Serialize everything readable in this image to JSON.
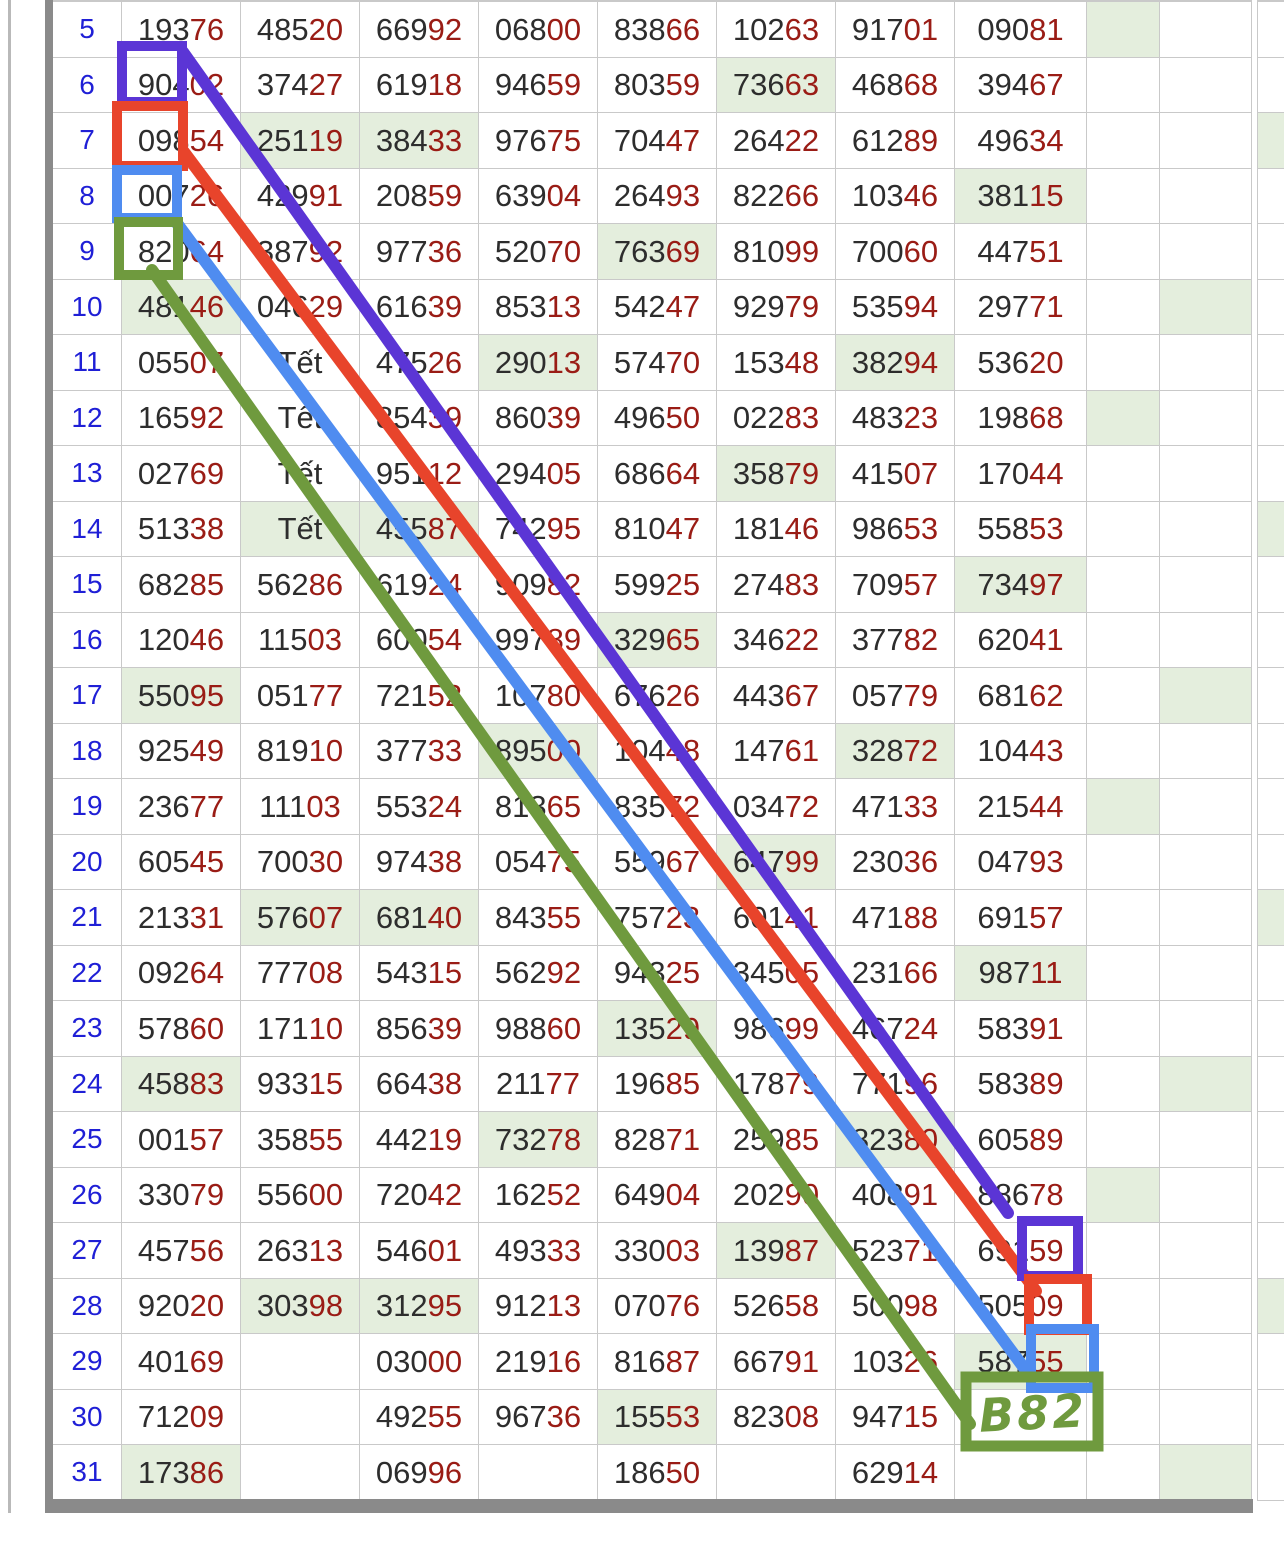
{
  "table": {
    "columns": 8,
    "tet_text": "Tết",
    "rows": [
      {
        "label": "5",
        "cells": [
          "19376",
          "48520",
          "66992",
          "06800",
          "83866",
          "10263",
          "91701",
          "09081"
        ]
      },
      {
        "label": "6",
        "cells": [
          "90402",
          "37427",
          "61918",
          "94659",
          "80359",
          "73663",
          "46868",
          "39467"
        ]
      },
      {
        "label": "7",
        "cells": [
          "09854",
          "25119",
          "38433",
          "97675",
          "70447",
          "26422",
          "61289",
          "49634"
        ]
      },
      {
        "label": "8",
        "cells": [
          "00726",
          "42991",
          "20859",
          "63904",
          "26493",
          "82266",
          "10346",
          "38115"
        ]
      },
      {
        "label": "9",
        "cells": [
          "82064",
          "38792",
          "97736",
          "52070",
          "76369",
          "81099",
          "70060",
          "44751"
        ]
      },
      {
        "label": "10",
        "cells": [
          "48146",
          "04629",
          "61639",
          "85313",
          "54247",
          "92979",
          "53594",
          "29771"
        ]
      },
      {
        "label": "11",
        "cells": [
          "05507",
          "Tết",
          "47526",
          "29013",
          "57470",
          "15348",
          "38294",
          "53620"
        ]
      },
      {
        "label": "12",
        "cells": [
          "16592",
          "Tết",
          "85439",
          "86039",
          "49650",
          "02283",
          "48323",
          "19868"
        ]
      },
      {
        "label": "13",
        "cells": [
          "02769",
          "Tết",
          "95112",
          "29405",
          "68664",
          "35879",
          "41507",
          "17044"
        ]
      },
      {
        "label": "14",
        "cells": [
          "51338",
          "Tết",
          "45587",
          "74295",
          "81047",
          "18146",
          "98653",
          "55853"
        ]
      },
      {
        "label": "15",
        "cells": [
          "68285",
          "56286",
          "61924",
          "90982",
          "59925",
          "27483",
          "70957",
          "73497"
        ]
      },
      {
        "label": "16",
        "cells": [
          "12046",
          "11503",
          "60054",
          "99789",
          "32965",
          "34622",
          "37782",
          "62041"
        ]
      },
      {
        "label": "17",
        "cells": [
          "55095",
          "05177",
          "72152",
          "10780",
          "67626",
          "44367",
          "05779",
          "68162"
        ]
      },
      {
        "label": "18",
        "cells": [
          "92549",
          "81910",
          "37733",
          "89500",
          "10448",
          "14761",
          "32872",
          "10443"
        ]
      },
      {
        "label": "19",
        "cells": [
          "23677",
          "11103",
          "55324",
          "81365",
          "83572",
          "03472",
          "47133",
          "21544"
        ]
      },
      {
        "label": "20",
        "cells": [
          "60545",
          "70030",
          "97438",
          "05475",
          "55967",
          "64799",
          "23036",
          "04793"
        ]
      },
      {
        "label": "21",
        "cells": [
          "21331",
          "57607",
          "68140",
          "84355",
          "75723",
          "60141",
          "47188",
          "69157"
        ]
      },
      {
        "label": "22",
        "cells": [
          "09264",
          "77708",
          "54315",
          "56292",
          "94325",
          "34505",
          "23166",
          "98711"
        ]
      },
      {
        "label": "23",
        "cells": [
          "57860",
          "17110",
          "85639",
          "98860",
          "13529",
          "98699",
          "46724",
          "58391"
        ]
      },
      {
        "label": "24",
        "cells": [
          "45883",
          "93315",
          "66438",
          "21177",
          "19685",
          "17879",
          "77196",
          "58389"
        ]
      },
      {
        "label": "25",
        "cells": [
          "00157",
          "35855",
          "44219",
          "73278",
          "82871",
          "25985",
          "82380",
          "60589"
        ]
      },
      {
        "label": "26",
        "cells": [
          "33079",
          "55600",
          "72042",
          "16252",
          "64904",
          "20290",
          "40891",
          "88678"
        ]
      },
      {
        "label": "27",
        "cells": [
          "45756",
          "26313",
          "54601",
          "49333",
          "33003",
          "13987",
          "52371",
          "69159"
        ]
      },
      {
        "label": "28",
        "cells": [
          "92020",
          "30398",
          "31295",
          "91213",
          "07076",
          "52658",
          "50098",
          "50509"
        ]
      },
      {
        "label": "29",
        "cells": [
          "40169",
          "",
          "03000",
          "21916",
          "81687",
          "66791",
          "10326",
          "58755"
        ]
      },
      {
        "label": "30",
        "cells": [
          "71209",
          "",
          "49255",
          "96736",
          "15553",
          "82308",
          "94715",
          ""
        ]
      },
      {
        "label": "31",
        "cells": [
          "17386",
          "",
          "06996",
          "",
          "18650",
          "",
          "62914",
          ""
        ]
      }
    ],
    "highlights": [
      "5-9",
      "6-6",
      "7-2",
      "7-3",
      "7-11",
      "8-8",
      "9-5",
      "10-1",
      "10-10",
      "11-4",
      "11-7",
      "12-9",
      "13-6",
      "14-2",
      "14-3",
      "14-11",
      "15-8",
      "16-5",
      "17-1",
      "17-10",
      "18-4",
      "18-7",
      "19-9",
      "20-6",
      "21-2",
      "21-3",
      "21-11",
      "22-8",
      "23-5",
      "24-1",
      "24-10",
      "25-4",
      "25-7",
      "26-9",
      "27-6",
      "28-2",
      "28-3",
      "28-11",
      "29-8",
      "30-5",
      "31-1",
      "31-10"
    ]
  },
  "annotations": {
    "handwriting_label": "B82",
    "colors": {
      "purple": "#5b35d5",
      "red": "#e8442b",
      "blue": "#4f8cf0",
      "green": "#6f9a3e"
    }
  },
  "colors": {
    "highlight_bg": "#e4eedd",
    "row_label_blue": "#1f1fd6",
    "digit_black": "#2d2d2d",
    "digit_red": "#9a1c15",
    "grid_line": "#c9c9c9",
    "outer_border": "#8a8a8a"
  }
}
